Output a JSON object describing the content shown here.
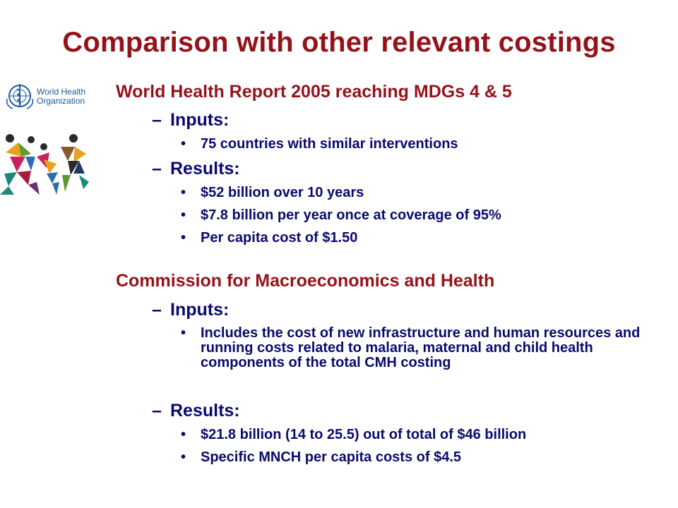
{
  "title": "Comparison with other relevant costings",
  "logo": {
    "org_text_line1": "World Health",
    "org_text_line2": "Organization",
    "emblem_icon": "who-emblem-icon",
    "figures_icon": "tangram-figures-icon"
  },
  "sections": [
    {
      "heading": "World Health Report 2005 reaching MDGs 4 & 5",
      "inputs_label": "Inputs:",
      "inputs": [
        "75 countries with similar interventions"
      ],
      "results_label": "Results:",
      "results": [
        "$52 billion over 10 years",
        "$7.8 billion per year once at coverage of 95%",
        "Per capita cost of $1.50"
      ]
    },
    {
      "heading": "Commission for Macroeconomics and Health",
      "inputs_label": "Inputs:",
      "inputs": [
        "Includes the cost of new infrastructure and human resources and running costs related to malaria, maternal and child health components of the total CMH costing"
      ],
      "results_label": "Results:",
      "results": [
        "$21.8 billion (14 to 25.5) out of total of $46 billion",
        "Specific MNCH per capita costs of $4.5"
      ]
    }
  ],
  "dash": "–",
  "bullet_char": "•"
}
